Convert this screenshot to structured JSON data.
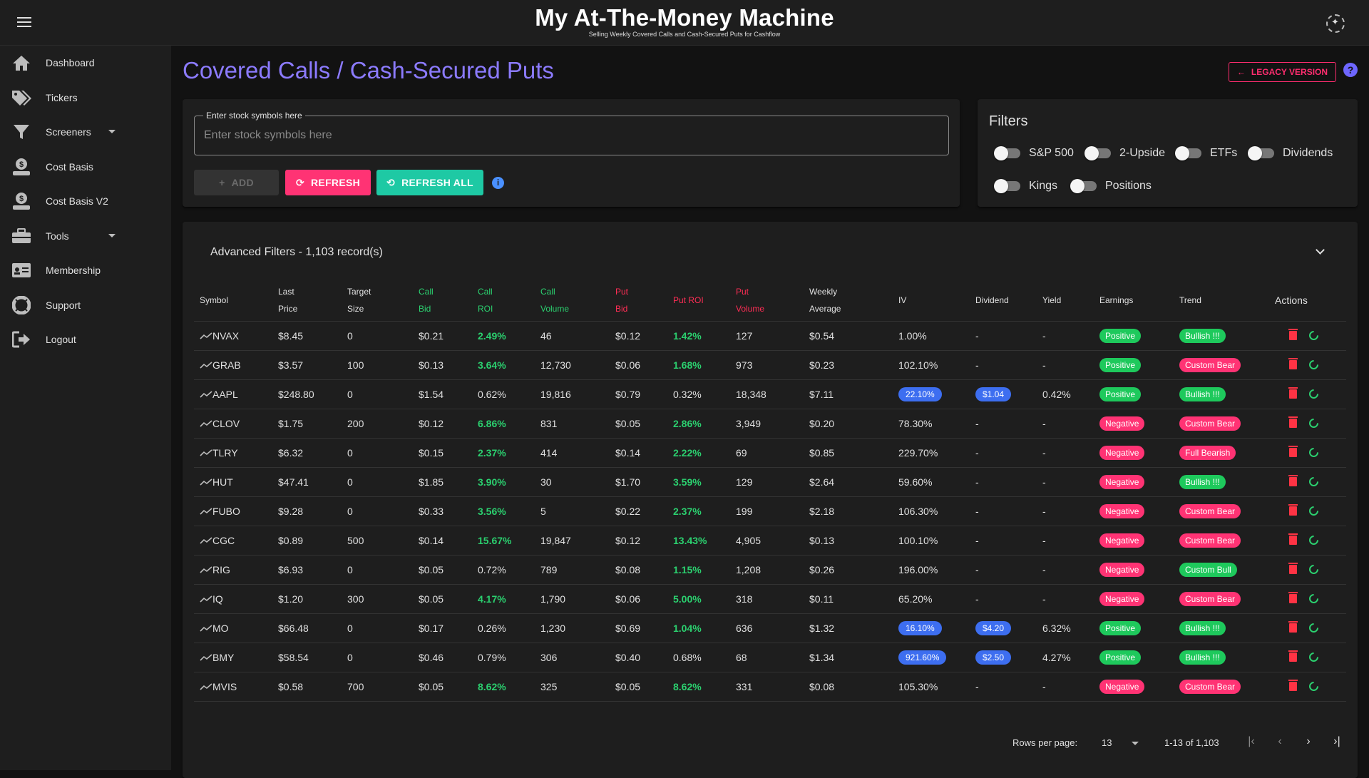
{
  "app": {
    "title": "My At-The-Money Machine",
    "subtitle": "Selling Weekly Covered Calls and Cash-Secured Puts for Cashflow"
  },
  "sidebar": {
    "items": [
      {
        "label": "Dashboard",
        "icon": "home-icon"
      },
      {
        "label": "Tickers",
        "icon": "tags-icon"
      },
      {
        "label": "Screeners",
        "icon": "filter-icon",
        "expandable": true
      },
      {
        "label": "Cost Basis",
        "icon": "dollar-hand-icon"
      },
      {
        "label": "Cost Basis V2",
        "icon": "dollar-hand-icon"
      },
      {
        "label": "Tools",
        "icon": "toolbox-icon",
        "expandable": true
      },
      {
        "label": "Membership",
        "icon": "id-card-icon"
      },
      {
        "label": "Support",
        "icon": "lifebuoy-icon"
      },
      {
        "label": "Logout",
        "icon": "logout-icon"
      }
    ]
  },
  "page": {
    "title": "Covered Calls / Cash-Secured Puts",
    "legacy_label": "LEGACY VERSION"
  },
  "symbols": {
    "legend": "Enter stock symbols here",
    "placeholder": "Enter stock symbols here",
    "add_label": "ADD",
    "refresh_label": "REFRESH",
    "refresh_all_label": "REFRESH ALL"
  },
  "filters": {
    "title": "Filters",
    "toggles": [
      {
        "label": "S&P 500",
        "on": false
      },
      {
        "label": "2-Upside",
        "on": false
      },
      {
        "label": "ETFs",
        "on": false
      },
      {
        "label": "Dividends",
        "on": false
      },
      {
        "label": "Kings",
        "on": false
      },
      {
        "label": "Positions",
        "on": false
      }
    ]
  },
  "advanced": {
    "title": "Advanced Filters - 1,103 record(s)"
  },
  "table": {
    "headers": {
      "symbol": "Symbol",
      "last_price_1": "Last",
      "last_price_2": "Price",
      "target_1": "Target",
      "target_2": "Size",
      "call_bid_1": "Call",
      "call_bid_2": "Bid",
      "call_roi_1": "Call",
      "call_roi_2": "ROI",
      "call_vol_1": "Call",
      "call_vol_2": "Volume",
      "put_bid_1": "Put",
      "put_bid_2": "Bid",
      "put_roi": "Put ROI",
      "put_vol_1": "Put",
      "put_vol_2": "Volume",
      "weekly_1": "Weekly",
      "weekly_2": "Average",
      "iv": "IV",
      "dividend": "Dividend",
      "yield": "Yield",
      "earnings": "Earnings",
      "trend": "Trend",
      "actions": "Actions"
    },
    "rows": [
      {
        "symbol": "NVAX",
        "last": "$8.45",
        "target": "0",
        "call_bid": "$0.21",
        "call_roi": "2.49%",
        "call_roi_hl": true,
        "call_vol": "46",
        "put_bid": "$0.12",
        "put_roi": "1.42%",
        "put_roi_hl": true,
        "put_vol": "127",
        "weekly": "$0.54",
        "iv": "1.00%",
        "iv_chip": false,
        "dividend": "-",
        "div_chip": false,
        "yield": "-",
        "earnings": "Positive",
        "trend": "Bullish !!!"
      },
      {
        "symbol": "GRAB",
        "last": "$3.57",
        "target": "100",
        "call_bid": "$0.13",
        "call_roi": "3.64%",
        "call_roi_hl": true,
        "call_vol": "12,730",
        "put_bid": "$0.06",
        "put_roi": "1.68%",
        "put_roi_hl": true,
        "put_vol": "973",
        "weekly": "$0.23",
        "iv": "102.10%",
        "iv_chip": false,
        "dividend": "-",
        "div_chip": false,
        "yield": "-",
        "earnings": "Positive",
        "trend": "Custom Bear"
      },
      {
        "symbol": "AAPL",
        "last": "$248.80",
        "target": "0",
        "call_bid": "$1.54",
        "call_roi": "0.62%",
        "call_roi_hl": false,
        "call_vol": "19,816",
        "put_bid": "$0.79",
        "put_roi": "0.32%",
        "put_roi_hl": false,
        "put_vol": "18,348",
        "weekly": "$7.11",
        "iv": "22.10%",
        "iv_chip": true,
        "dividend": "$1.04",
        "div_chip": true,
        "yield": "0.42%",
        "earnings": "Positive",
        "trend": "Bullish !!!"
      },
      {
        "symbol": "CLOV",
        "last": "$1.75",
        "target": "200",
        "call_bid": "$0.12",
        "call_roi": "6.86%",
        "call_roi_hl": true,
        "call_vol": "831",
        "put_bid": "$0.05",
        "put_roi": "2.86%",
        "put_roi_hl": true,
        "put_vol": "3,949",
        "weekly": "$0.20",
        "iv": "78.30%",
        "iv_chip": false,
        "dividend": "-",
        "div_chip": false,
        "yield": "-",
        "earnings": "Negative",
        "trend": "Custom Bear"
      },
      {
        "symbol": "TLRY",
        "last": "$6.32",
        "target": "0",
        "call_bid": "$0.15",
        "call_roi": "2.37%",
        "call_roi_hl": true,
        "call_vol": "414",
        "put_bid": "$0.14",
        "put_roi": "2.22%",
        "put_roi_hl": true,
        "put_vol": "69",
        "weekly": "$0.85",
        "iv": "229.70%",
        "iv_chip": false,
        "dividend": "-",
        "div_chip": false,
        "yield": "-",
        "earnings": "Negative",
        "trend": "Full Bearish"
      },
      {
        "symbol": "HUT",
        "last": "$47.41",
        "target": "0",
        "call_bid": "$1.85",
        "call_roi": "3.90%",
        "call_roi_hl": true,
        "call_vol": "30",
        "put_bid": "$1.70",
        "put_roi": "3.59%",
        "put_roi_hl": true,
        "put_vol": "129",
        "weekly": "$2.64",
        "iv": "59.60%",
        "iv_chip": false,
        "dividend": "-",
        "div_chip": false,
        "yield": "-",
        "earnings": "Negative",
        "trend": "Bullish !!!"
      },
      {
        "symbol": "FUBO",
        "last": "$9.28",
        "target": "0",
        "call_bid": "$0.33",
        "call_roi": "3.56%",
        "call_roi_hl": true,
        "call_vol": "5",
        "put_bid": "$0.22",
        "put_roi": "2.37%",
        "put_roi_hl": true,
        "put_vol": "199",
        "weekly": "$2.18",
        "iv": "106.30%",
        "iv_chip": false,
        "dividend": "-",
        "div_chip": false,
        "yield": "-",
        "earnings": "Negative",
        "trend": "Custom Bear"
      },
      {
        "symbol": "CGC",
        "last": "$0.89",
        "target": "500",
        "call_bid": "$0.14",
        "call_roi": "15.67%",
        "call_roi_hl": true,
        "call_vol": "19,847",
        "put_bid": "$0.12",
        "put_roi": "13.43%",
        "put_roi_hl": true,
        "put_vol": "4,905",
        "weekly": "$0.13",
        "iv": "100.10%",
        "iv_chip": false,
        "dividend": "-",
        "div_chip": false,
        "yield": "-",
        "earnings": "Negative",
        "trend": "Custom Bear"
      },
      {
        "symbol": "RIG",
        "last": "$6.93",
        "target": "0",
        "call_bid": "$0.05",
        "call_roi": "0.72%",
        "call_roi_hl": false,
        "call_vol": "789",
        "put_bid": "$0.08",
        "put_roi": "1.15%",
        "put_roi_hl": true,
        "put_vol": "1,208",
        "weekly": "$0.26",
        "iv": "196.00%",
        "iv_chip": false,
        "dividend": "-",
        "div_chip": false,
        "yield": "-",
        "earnings": "Negative",
        "trend": "Custom Bull"
      },
      {
        "symbol": "IQ",
        "last": "$1.20",
        "target": "300",
        "call_bid": "$0.05",
        "call_roi": "4.17%",
        "call_roi_hl": true,
        "call_vol": "1,790",
        "put_bid": "$0.06",
        "put_roi": "5.00%",
        "put_roi_hl": true,
        "put_vol": "318",
        "weekly": "$0.11",
        "iv": "65.20%",
        "iv_chip": false,
        "dividend": "-",
        "div_chip": false,
        "yield": "-",
        "earnings": "Negative",
        "trend": "Custom Bear"
      },
      {
        "symbol": "MO",
        "last": "$66.48",
        "target": "0",
        "call_bid": "$0.17",
        "call_roi": "0.26%",
        "call_roi_hl": false,
        "call_vol": "1,230",
        "put_bid": "$0.69",
        "put_roi": "1.04%",
        "put_roi_hl": true,
        "put_vol": "636",
        "weekly": "$1.32",
        "iv": "16.10%",
        "iv_chip": true,
        "dividend": "$4.20",
        "div_chip": true,
        "yield": "6.32%",
        "earnings": "Positive",
        "trend": "Bullish !!!"
      },
      {
        "symbol": "BMY",
        "last": "$58.54",
        "target": "0",
        "call_bid": "$0.46",
        "call_roi": "0.79%",
        "call_roi_hl": false,
        "call_vol": "306",
        "put_bid": "$0.40",
        "put_roi": "0.68%",
        "put_roi_hl": false,
        "put_vol": "68",
        "weekly": "$1.34",
        "iv": "921.60%",
        "iv_chip": true,
        "dividend": "$2.50",
        "div_chip": true,
        "yield": "4.27%",
        "earnings": "Positive",
        "trend": "Bullish !!!"
      },
      {
        "symbol": "MVIS",
        "last": "$0.58",
        "target": "700",
        "call_bid": "$0.05",
        "call_roi": "8.62%",
        "call_roi_hl": true,
        "call_vol": "325",
        "put_bid": "$0.05",
        "put_roi": "8.62%",
        "put_roi_hl": true,
        "put_vol": "331",
        "weekly": "$0.08",
        "iv": "105.30%",
        "iv_chip": false,
        "dividend": "-",
        "div_chip": false,
        "yield": "-",
        "earnings": "Negative",
        "trend": "Custom Bear"
      }
    ]
  },
  "pagination": {
    "rows_label": "Rows per page:",
    "rows_value": "13",
    "range": "1-13 of 1,103"
  },
  "colors": {
    "accent_purple": "#8c7bff",
    "pink": "#ff3374",
    "green": "#1ec95c",
    "teal": "#1ec9a4",
    "blue": "#3d6ef0"
  }
}
